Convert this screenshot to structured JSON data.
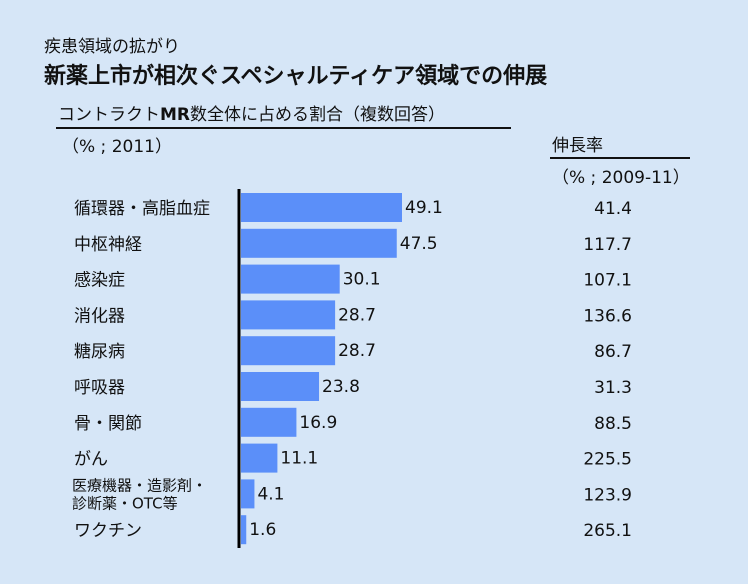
{
  "subtitle": "疾患領域の拡がり",
  "title": "新薬上市が相次ぐスペシャルティケア領域での伸展",
  "share_label_prefix": "コントラクト",
  "share_label_bold": "MR",
  "share_label_suffix": "数全体に占める割合（複数回答）",
  "unit_left": "（% ; 2011）",
  "growth_label": "伸長率",
  "unit_right": "（% ; 2009-11）",
  "colors": {
    "bar": "#5b8ff9",
    "background": "#d6e6f7",
    "axis": "#000000"
  },
  "chart_data": {
    "type": "bar",
    "orientation": "horizontal",
    "categories": [
      "循環器・高脂血症",
      "中枢神経",
      "感染症",
      "消化器",
      "糖尿病",
      "呼吸器",
      "骨・関節",
      "がん",
      "医療機器・造影剤・診断薬・OTC等",
      "ワクチン"
    ],
    "category_lines": [
      [
        "循環器・高脂血症"
      ],
      [
        "中枢神経"
      ],
      [
        "感染症"
      ],
      [
        "消化器"
      ],
      [
        "糖尿病"
      ],
      [
        "呼吸器"
      ],
      [
        "骨・関節"
      ],
      [
        "がん"
      ],
      [
        "医療機器・造影剤・",
        "診断薬・OTC等"
      ],
      [
        "ワクチン"
      ]
    ],
    "value_labels": [
      "49.1",
      "47.5",
      "30.1",
      "28.7",
      "28.7",
      "23.8",
      "16.9",
      "11.1",
      "4.1",
      "1.6"
    ],
    "values": [
      49.1,
      47.5,
      30.1,
      28.7,
      28.7,
      23.8,
      16.9,
      11.1,
      4.1,
      1.6
    ],
    "growth_labels": [
      "41.4",
      "117.7",
      "107.1",
      "136.6",
      "86.7",
      "31.3",
      "88.5",
      "225.5",
      "123.9",
      "265.1"
    ],
    "growth": [
      41.4,
      117.7,
      107.1,
      136.6,
      86.7,
      31.3,
      88.5,
      225.5,
      123.9,
      265.1
    ],
    "xlim": [
      0,
      50
    ]
  }
}
